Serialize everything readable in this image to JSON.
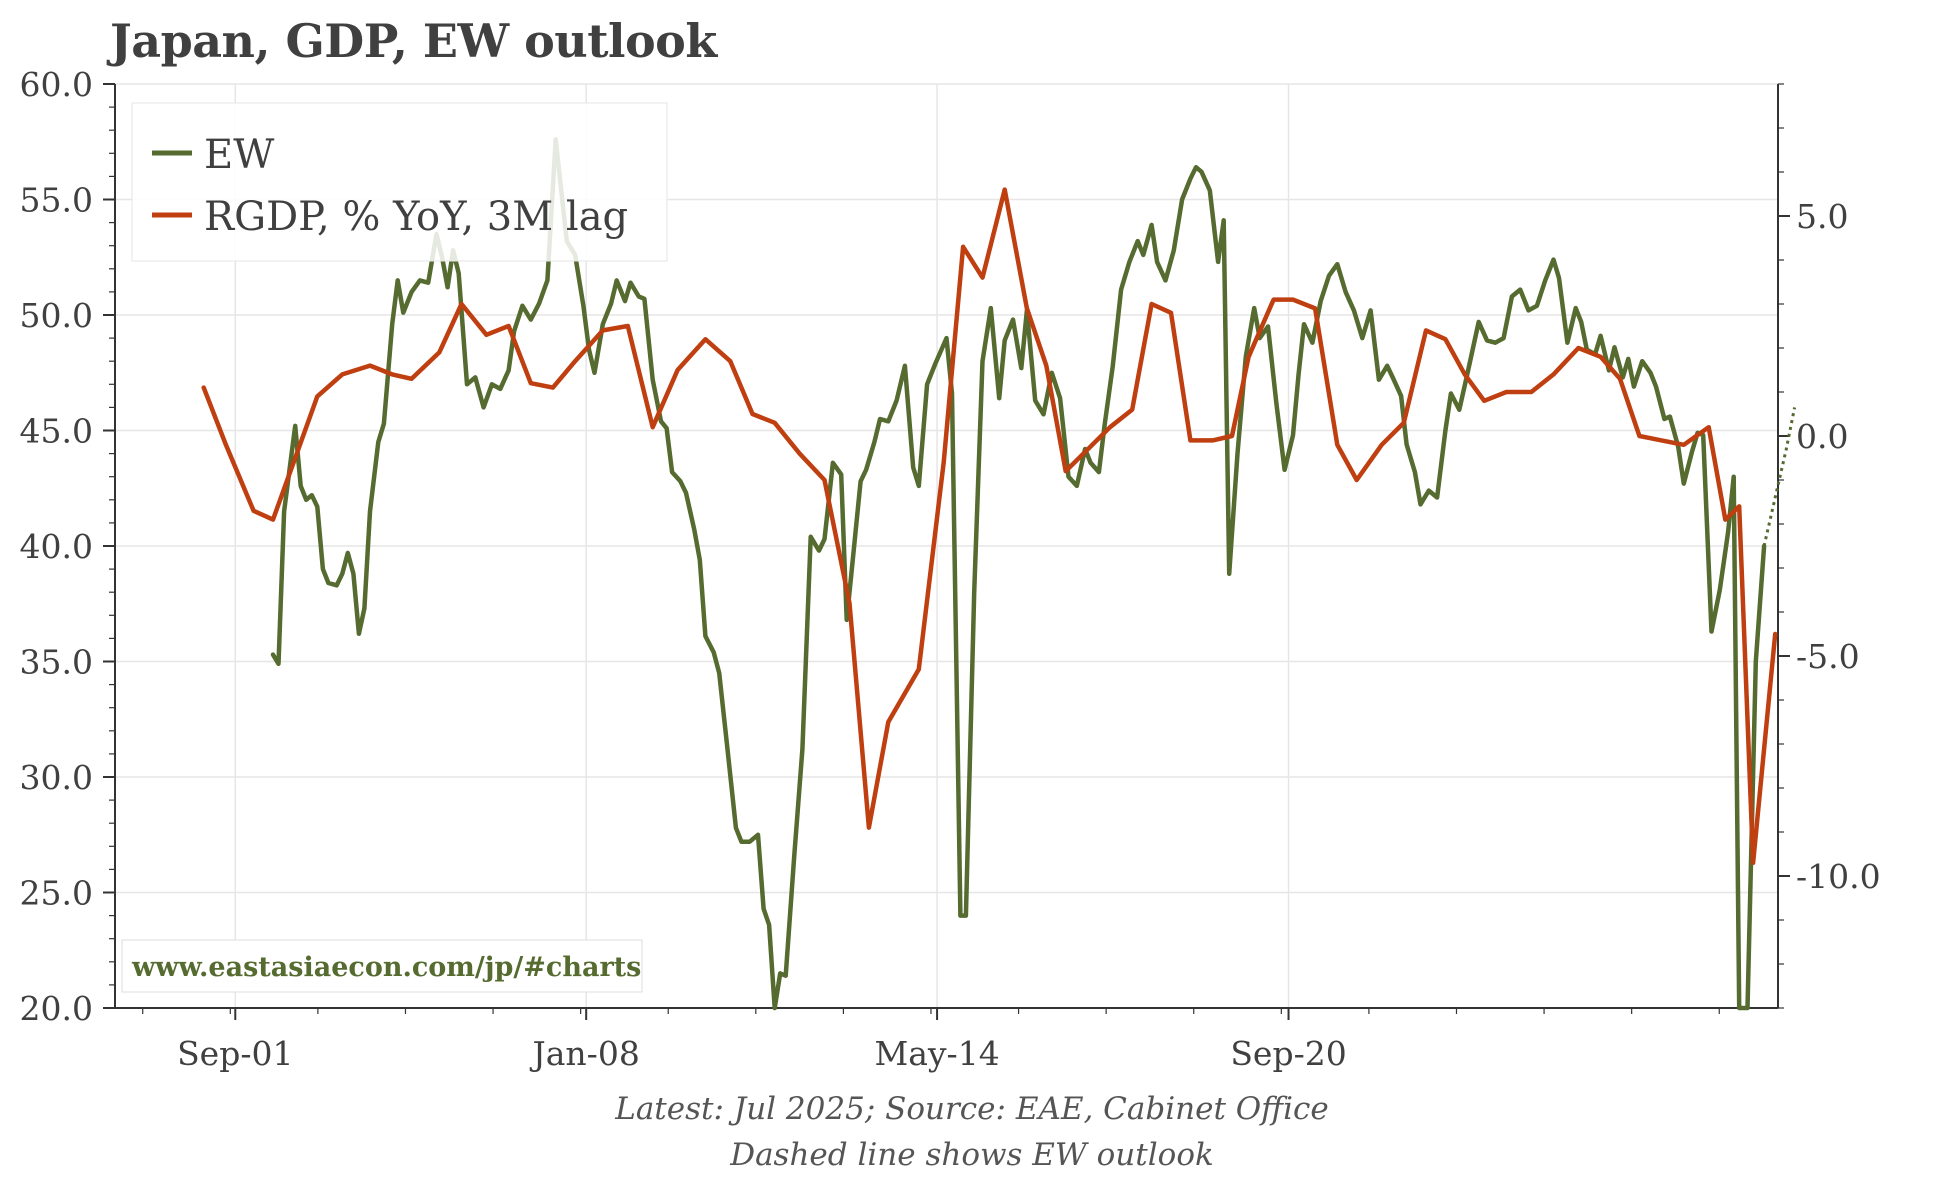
{
  "chart_data": {
    "type": "line",
    "title": "Japan, GDP, EW outlook",
    "x_tick_labels": [
      "Sep-01",
      "Jan-08",
      "May-14",
      "Sep-20"
    ],
    "x_range": [
      1999.5,
      2029.5
    ],
    "y_left": {
      "range": [
        20,
        60
      ],
      "ticks": [
        "20.0",
        "25.0",
        "30.0",
        "35.0",
        "40.0",
        "45.0",
        "50.0",
        "55.0",
        "60.0"
      ]
    },
    "y_right": {
      "range": [
        -13.0,
        8.0
      ],
      "ticks": [
        "-10.0",
        "-5.0",
        "0.0",
        "5.0"
      ]
    },
    "grid": true,
    "legend_position": "top-left",
    "watermark": "www.eastasiaecon.com/jp/#charts",
    "footer_lines": [
      "Latest: Jul 2025; Source: EAE, Cabinet Office",
      "Dashed line shows EW outlook"
    ],
    "series": [
      {
        "name": "EW",
        "axis": "left",
        "color": "#556b2f",
        "points": [
          [
            2002.35,
            35.3
          ],
          [
            2002.45,
            34.9
          ],
          [
            2002.55,
            41.5
          ],
          [
            2002.75,
            45.2
          ],
          [
            2002.85,
            42.6
          ],
          [
            2002.95,
            42.0
          ],
          [
            2003.05,
            42.2
          ],
          [
            2003.15,
            41.7
          ],
          [
            2003.25,
            39.0
          ],
          [
            2003.35,
            38.4
          ],
          [
            2003.5,
            38.3
          ],
          [
            2003.6,
            38.8
          ],
          [
            2003.7,
            39.7
          ],
          [
            2003.8,
            38.8
          ],
          [
            2003.9,
            36.2
          ],
          [
            2004.0,
            37.3
          ],
          [
            2004.1,
            41.5
          ],
          [
            2004.25,
            44.5
          ],
          [
            2004.35,
            45.3
          ],
          [
            2004.5,
            49.6
          ],
          [
            2004.6,
            51.5
          ],
          [
            2004.7,
            50.1
          ],
          [
            2004.85,
            51.0
          ],
          [
            2005.0,
            51.5
          ],
          [
            2005.15,
            51.4
          ],
          [
            2005.3,
            53.5
          ],
          [
            2005.4,
            52.5
          ],
          [
            2005.5,
            51.2
          ],
          [
            2005.6,
            52.8
          ],
          [
            2005.7,
            51.8
          ],
          [
            2005.85,
            47.0
          ],
          [
            2006.0,
            47.3
          ],
          [
            2006.15,
            46.0
          ],
          [
            2006.3,
            47.0
          ],
          [
            2006.45,
            46.8
          ],
          [
            2006.6,
            47.6
          ],
          [
            2006.7,
            49.3
          ],
          [
            2006.85,
            50.4
          ],
          [
            2007.0,
            49.8
          ],
          [
            2007.15,
            50.5
          ],
          [
            2007.3,
            51.5
          ],
          [
            2007.45,
            57.6
          ],
          [
            2007.55,
            55.4
          ],
          [
            2007.65,
            53.2
          ],
          [
            2007.8,
            52.6
          ],
          [
            2007.95,
            50.4
          ],
          [
            2008.05,
            48.5
          ],
          [
            2008.15,
            47.5
          ],
          [
            2008.3,
            49.6
          ],
          [
            2008.45,
            50.5
          ],
          [
            2008.55,
            51.5
          ],
          [
            2008.7,
            50.6
          ],
          [
            2008.8,
            51.4
          ],
          [
            2008.95,
            50.8
          ],
          [
            2009.05,
            50.7
          ],
          [
            2009.2,
            47.2
          ],
          [
            2009.35,
            45.4
          ],
          [
            2009.45,
            45.1
          ],
          [
            2009.55,
            43.2
          ],
          [
            2009.7,
            42.8
          ],
          [
            2009.8,
            42.3
          ],
          [
            2009.95,
            40.7
          ],
          [
            2010.05,
            39.4
          ],
          [
            2010.15,
            36.1
          ],
          [
            2010.3,
            35.4
          ],
          [
            2010.4,
            34.5
          ],
          [
            2010.55,
            31.2
          ],
          [
            2010.7,
            27.8
          ],
          [
            2010.8,
            27.2
          ],
          [
            2010.95,
            27.2
          ],
          [
            2011.1,
            27.5
          ],
          [
            2011.2,
            24.3
          ],
          [
            2011.3,
            23.6
          ],
          [
            2011.4,
            20.0
          ],
          [
            2011.5,
            21.5
          ],
          [
            2011.6,
            21.4
          ],
          [
            2011.75,
            26.5
          ],
          [
            2011.9,
            31.2
          ],
          [
            2012.05,
            40.4
          ],
          [
            2012.2,
            39.8
          ],
          [
            2012.3,
            40.3
          ],
          [
            2012.45,
            43.6
          ],
          [
            2012.6,
            43.1
          ],
          [
            2012.7,
            36.8
          ],
          [
            2012.8,
            39.2
          ],
          [
            2012.95,
            42.8
          ],
          [
            2013.05,
            43.3
          ],
          [
            2013.2,
            44.5
          ],
          [
            2013.3,
            45.5
          ],
          [
            2013.45,
            45.4
          ],
          [
            2013.6,
            46.3
          ],
          [
            2013.75,
            47.8
          ],
          [
            2013.9,
            43.4
          ],
          [
            2014.0,
            42.6
          ],
          [
            2014.15,
            47.0
          ],
          [
            2014.3,
            47.9
          ],
          [
            2014.5,
            49.0
          ],
          [
            2014.6,
            46.6
          ],
          [
            2014.75,
            24.0
          ],
          [
            2014.85,
            24.0
          ],
          [
            2015.0,
            38.0
          ],
          [
            2015.15,
            48.0
          ],
          [
            2015.3,
            50.3
          ],
          [
            2015.45,
            46.4
          ],
          [
            2015.55,
            48.9
          ],
          [
            2015.7,
            49.8
          ],
          [
            2015.85,
            47.7
          ],
          [
            2015.95,
            50.2
          ],
          [
            2016.1,
            46.3
          ],
          [
            2016.25,
            45.7
          ],
          [
            2016.4,
            47.5
          ],
          [
            2016.55,
            46.4
          ],
          [
            2016.7,
            43.0
          ],
          [
            2016.85,
            42.6
          ],
          [
            2017.0,
            44.2
          ],
          [
            2017.1,
            43.6
          ],
          [
            2017.25,
            43.2
          ],
          [
            2017.35,
            45.2
          ],
          [
            2017.5,
            47.8
          ],
          [
            2017.65,
            51.1
          ],
          [
            2017.8,
            52.3
          ],
          [
            2017.95,
            53.2
          ],
          [
            2018.05,
            52.6
          ],
          [
            2018.2,
            53.9
          ],
          [
            2018.3,
            52.3
          ],
          [
            2018.45,
            51.5
          ],
          [
            2018.6,
            52.8
          ],
          [
            2018.75,
            55.0
          ],
          [
            2018.9,
            55.9
          ],
          [
            2019.0,
            56.4
          ],
          [
            2019.1,
            56.2
          ],
          [
            2019.25,
            55.4
          ],
          [
            2019.4,
            52.3
          ],
          [
            2019.5,
            54.1
          ],
          [
            2019.6,
            38.8
          ],
          [
            2019.75,
            44.0
          ],
          [
            2019.9,
            48.2
          ],
          [
            2020.05,
            50.3
          ],
          [
            2020.15,
            49.0
          ],
          [
            2020.3,
            49.5
          ],
          [
            2020.45,
            46.2
          ],
          [
            2020.6,
            43.3
          ],
          [
            2020.75,
            44.8
          ],
          [
            2020.85,
            47.4
          ],
          [
            2020.95,
            49.6
          ],
          [
            2021.1,
            48.8
          ],
          [
            2021.25,
            50.6
          ],
          [
            2021.4,
            51.7
          ],
          [
            2021.55,
            52.2
          ],
          [
            2021.7,
            51.0
          ],
          [
            2021.85,
            50.2
          ],
          [
            2022.0,
            49.0
          ],
          [
            2022.15,
            50.2
          ],
          [
            2022.3,
            47.2
          ],
          [
            2022.45,
            47.8
          ],
          [
            2022.55,
            47.3
          ],
          [
            2022.7,
            46.5
          ],
          [
            2022.8,
            44.4
          ],
          [
            2022.95,
            43.2
          ],
          [
            2023.05,
            41.8
          ],
          [
            2023.2,
            42.4
          ],
          [
            2023.35,
            42.1
          ],
          [
            2023.5,
            45.0
          ],
          [
            2023.6,
            46.6
          ],
          [
            2023.75,
            45.9
          ],
          [
            2023.9,
            47.5
          ],
          [
            2024.1,
            49.7
          ],
          [
            2024.25,
            48.9
          ],
          [
            2024.4,
            48.8
          ],
          [
            2024.55,
            49.0
          ],
          [
            2024.7,
            50.8
          ],
          [
            2024.85,
            51.1
          ],
          [
            2025.0,
            50.2
          ],
          [
            2025.15,
            50.4
          ],
          [
            2025.3,
            51.5
          ],
          [
            2025.45,
            52.4
          ],
          [
            2025.55,
            51.6
          ],
          [
            2025.7,
            48.8
          ],
          [
            2025.85,
            50.3
          ],
          [
            2025.95,
            49.7
          ],
          [
            2026.05,
            48.5
          ],
          [
            2026.2,
            48.3
          ],
          [
            2026.3,
            49.1
          ],
          [
            2026.45,
            47.6
          ],
          [
            2026.55,
            48.6
          ],
          [
            2026.7,
            47.3
          ],
          [
            2026.8,
            48.1
          ],
          [
            2026.9,
            46.9
          ],
          [
            2027.05,
            48.0
          ],
          [
            2027.2,
            47.5
          ],
          [
            2027.3,
            46.9
          ],
          [
            2027.45,
            45.5
          ],
          [
            2027.55,
            45.6
          ],
          [
            2027.7,
            44.3
          ],
          [
            2027.8,
            42.7
          ],
          [
            2027.95,
            44.1
          ],
          [
            2028.05,
            44.9
          ],
          [
            2028.15,
            44.8
          ],
          [
            2028.3,
            36.3
          ],
          [
            2028.45,
            38.1
          ],
          [
            2028.6,
            40.6
          ],
          [
            2028.7,
            43.0
          ],
          [
            2028.8,
            20.0
          ],
          [
            2028.95,
            20.0
          ],
          [
            2029.1,
            35.0
          ],
          [
            2029.25,
            40.0
          ]
        ]
      },
      {
        "name": "RGDP, % YoY, 3M lag",
        "axis": "right",
        "color": "#bf3f10",
        "points": [
          [
            2001.1,
            1.1
          ],
          [
            2001.5,
            -0.2
          ],
          [
            2002.0,
            -1.7
          ],
          [
            2002.35,
            -1.9
          ],
          [
            2002.75,
            -0.5
          ],
          [
            2003.15,
            0.9
          ],
          [
            2003.6,
            1.4
          ],
          [
            2004.1,
            1.6
          ],
          [
            2004.5,
            1.4
          ],
          [
            2004.85,
            1.3
          ],
          [
            2005.35,
            1.9
          ],
          [
            2005.75,
            3.0
          ],
          [
            2006.2,
            2.3
          ],
          [
            2006.6,
            2.5
          ],
          [
            2007.0,
            1.2
          ],
          [
            2007.4,
            1.1
          ],
          [
            2007.8,
            1.7
          ],
          [
            2008.3,
            2.4
          ],
          [
            2008.75,
            2.5
          ],
          [
            2009.2,
            0.2
          ],
          [
            2009.65,
            1.5
          ],
          [
            2010.15,
            2.2
          ],
          [
            2010.6,
            1.7
          ],
          [
            2011.0,
            0.5
          ],
          [
            2011.4,
            0.3
          ],
          [
            2011.85,
            -0.4
          ],
          [
            2012.3,
            -1.0
          ],
          [
            2012.75,
            -3.8
          ],
          [
            2013.1,
            -8.9
          ],
          [
            2013.45,
            -6.5
          ],
          [
            2014.0,
            -5.3
          ],
          [
            2014.45,
            -0.6
          ],
          [
            2014.8,
            4.3
          ],
          [
            2015.15,
            3.6
          ],
          [
            2015.55,
            5.6
          ],
          [
            2015.95,
            2.9
          ],
          [
            2016.3,
            1.6
          ],
          [
            2016.65,
            -0.8
          ],
          [
            2017.05,
            -0.3
          ],
          [
            2017.45,
            0.2
          ],
          [
            2017.85,
            0.6
          ],
          [
            2018.2,
            3.0
          ],
          [
            2018.55,
            2.8
          ],
          [
            2018.9,
            -0.1
          ],
          [
            2019.3,
            -0.1
          ],
          [
            2019.65,
            0.0
          ],
          [
            2019.95,
            1.8
          ],
          [
            2020.4,
            3.1
          ],
          [
            2020.75,
            3.1
          ],
          [
            2021.15,
            2.9
          ],
          [
            2021.55,
            -0.2
          ],
          [
            2021.9,
            -1.0
          ],
          [
            2022.35,
            -0.2
          ],
          [
            2022.75,
            0.3
          ],
          [
            2023.15,
            2.4
          ],
          [
            2023.5,
            2.2
          ],
          [
            2023.85,
            1.4
          ],
          [
            2024.2,
            0.8
          ],
          [
            2024.6,
            1.0
          ],
          [
            2025.05,
            1.0
          ],
          [
            2025.45,
            1.4
          ],
          [
            2025.9,
            2.0
          ],
          [
            2026.3,
            1.8
          ],
          [
            2026.65,
            1.3
          ],
          [
            2027.0,
            0.0
          ],
          [
            2027.4,
            -0.1
          ],
          [
            2027.8,
            -0.2
          ],
          [
            2028.25,
            0.2
          ],
          [
            2028.55,
            -1.9
          ],
          [
            2028.8,
            -1.6
          ],
          [
            2029.05,
            -9.7
          ],
          [
            2029.45,
            -4.5
          ]
        ]
      }
    ]
  },
  "legend": {
    "ew_label": "EW",
    "rgdp_label": "RGDP, % YoY, 3M lag"
  }
}
